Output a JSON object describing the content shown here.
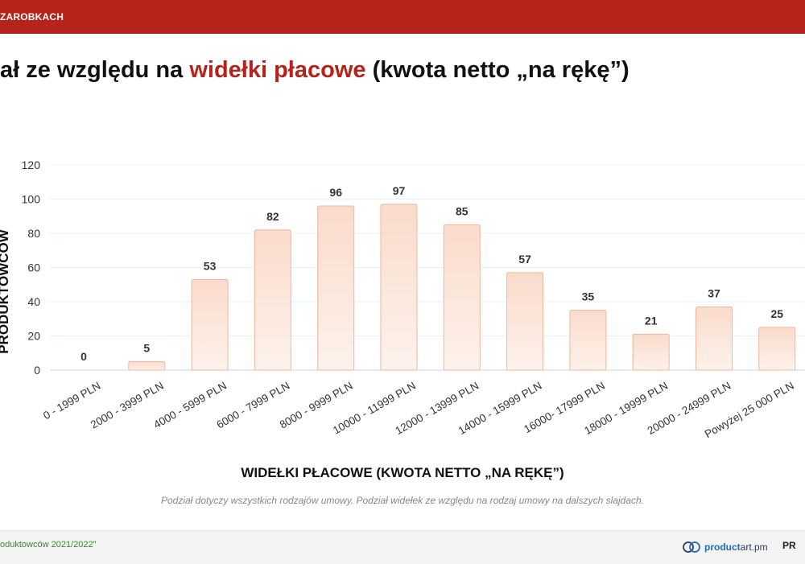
{
  "header": {
    "title": "ZAROBKACH"
  },
  "slide": {
    "heading_prefix": "iał ze względu na ",
    "heading_highlight": "widełki płacowe",
    "heading_suffix": " (kwota netto „na rękę”)"
  },
  "chart_data": {
    "type": "bar",
    "categories": [
      "0 - 1999 PLN",
      "2000 - 3999 PLN",
      "4000 - 5999 PLN",
      "6000 - 7999 PLN",
      "8000 - 9999 PLN",
      "10000 - 11999 PLN",
      "12000 - 13999 PLN",
      "14000 - 15999 PLN",
      "16000- 17999 PLN",
      "18000 - 19999 PLN",
      "20000 - 24999 PLN",
      "Powyżej 25 000 PLN"
    ],
    "values": [
      0,
      5,
      53,
      82,
      96,
      97,
      85,
      57,
      35,
      21,
      37,
      25
    ],
    "title": "",
    "xlabel": "WIDEŁKI PŁACOWE (KWOTA NETTO „NA RĘKĘ”)",
    "ylabel": "PRODUKTOWCÓW",
    "ylim": [
      0,
      120
    ],
    "yticks": [
      0,
      20,
      40,
      60,
      80,
      100,
      120
    ],
    "grid": true,
    "data_labels": true,
    "bar_fill_top": "#fadbcb",
    "bar_fill_bottom": "#fdf2ec",
    "bar_stroke": "#f0b79c"
  },
  "note": "Podział dotyczy wszystkich rodzajów umowy. Podział widełek ze względu na rodzaj umowy na dalszych slajdach.",
  "footer": {
    "left_text": "oduktowców 2021/2022”",
    "brand_name_bold": "product",
    "brand_name_rest": "art.pm",
    "right_text": "PR"
  }
}
